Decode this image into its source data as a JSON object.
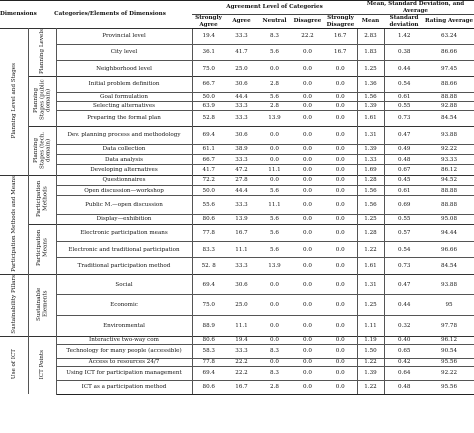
{
  "headers": {
    "dimensions": "Dimensions",
    "categories": "Categories/Elements of Dimensions",
    "agreement": "Agreement Level of Categories",
    "stats": "Mean, Standard Deviation, and Average",
    "strongly_agree": "Strongly Agree",
    "agree": "Agree",
    "neutral": "Neutral",
    "disagree": "Disagree",
    "strongly_disagree": "Strongly Disagree",
    "mean": "Mean",
    "std_dev": "Standard deviation",
    "rating_avg": "Rating Average"
  },
  "dimensions": [
    {
      "label": "Planning Level and Stages",
      "categories": [
        {
          "label": "Planning Levels",
          "rows": [
            {
              "element": "Provincial level",
              "sa": "19.4",
              "a": "33.3",
              "n": "8.3",
              "d": "22.2",
              "sd": "16.7",
              "mean": "2.83",
              "std": "1.42",
              "avg": "63.24"
            },
            {
              "element": "City level",
              "sa": "36.1",
              "a": "41.7",
              "n": "5.6",
              "d": "0.0",
              "sd": "16.7",
              "mean": "1.83",
              "std": "0.38",
              "avg": "86.66"
            },
            {
              "element": "Neighborhood level",
              "sa": "75.0",
              "a": "25.0",
              "n": "0.0",
              "d": "0.0",
              "sd": "0.0",
              "mean": "1.25",
              "std": "0.44",
              "avg": "97.45"
            }
          ]
        },
        {
          "label": "Planning Stages (public domain)",
          "rows": [
            {
              "element": "Initial problem definition",
              "sa": "66.7",
              "a": "30.6",
              "n": "2.8",
              "d": "0.0",
              "sd": "0.0",
              "mean": "1.36",
              "std": "0.54",
              "avg": "88.66"
            },
            {
              "element": "Goal formulation",
              "sa": "50.0",
              "a": "44.4",
              "n": "5.6",
              "d": "0.0",
              "sd": "0.0",
              "mean": "1.56",
              "std": "0.61",
              "avg": "88.88"
            },
            {
              "element": "Selecting alternatives",
              "sa": "63.9",
              "a": "33.3",
              "n": "2.8",
              "d": "0.0",
              "sd": "0.0",
              "mean": "1.39",
              "std": "0.55",
              "avg": "92.88"
            },
            {
              "element": "Preparing the formal plan",
              "sa": "52.8",
              "a": "33.3",
              "n": "13.9",
              "d": "0.0",
              "sd": "0.0",
              "mean": "1.61",
              "std": "0.73",
              "avg": "84.54"
            }
          ]
        },
        {
          "label": "Planning Stages (tech. domain)",
          "rows": [
            {
              "element": "Dev. planning process and methodology",
              "sa": "69.4",
              "a": "30.6",
              "n": "0.0",
              "d": "0.0",
              "sd": "0.0",
              "mean": "1.31",
              "std": "0.47",
              "avg": "93.88"
            },
            {
              "element": "Data collection",
              "sa": "61.1",
              "a": "38.9",
              "n": "0.0",
              "d": "0.0",
              "sd": "0.0",
              "mean": "1.39",
              "std": "0.49",
              "avg": "92.22"
            },
            {
              "element": "Data analysis",
              "sa": "66.7",
              "a": "33.3",
              "n": "0.0",
              "d": "0.0",
              "sd": "0.0",
              "mean": "1.33",
              "std": "0.48",
              "avg": "93.33"
            },
            {
              "element": "Developing alternatives",
              "sa": "41.7",
              "a": "47.2",
              "n": "11.1",
              "d": "0.0",
              "sd": "0.0",
              "mean": "1.69",
              "std": "0.67",
              "avg": "86.12"
            }
          ]
        }
      ]
    },
    {
      "label": "Participation Methods and Means",
      "categories": [
        {
          "label": "Participation Methods",
          "rows": [
            {
              "element": "Questionnaires",
              "sa": "72.2",
              "a": "27.8",
              "n": "0.0",
              "d": "0.0",
              "sd": "0.0",
              "mean": "1.28",
              "std": "0.45",
              "avg": "94.52"
            },
            {
              "element": "Open discussion—workshop",
              "sa": "50.0",
              "a": "44.4",
              "n": "5.6",
              "d": "0.0",
              "sd": "0.0",
              "mean": "1.56",
              "std": "0.61",
              "avg": "88.88"
            },
            {
              "element": "Public M.—open discussion",
              "sa": "55.6",
              "a": "33.3",
              "n": "11.1",
              "d": "0.0",
              "sd": "0.0",
              "mean": "1.56",
              "std": "0.69",
              "avg": "88.88"
            },
            {
              "element": "Display—exhibition",
              "sa": "80.6",
              "a": "13.9",
              "n": "5.6",
              "d": "0.0",
              "sd": "0.0",
              "mean": "1.25",
              "std": "0.55",
              "avg": "95.08"
            }
          ]
        },
        {
          "label": "Participation Means",
          "rows": [
            {
              "element": "Electronic participation means",
              "sa": "77.8",
              "a": "16.7",
              "n": "5.6",
              "d": "0.0",
              "sd": "0.0",
              "mean": "1.28",
              "std": "0.57",
              "avg": "94.44"
            },
            {
              "element": "Electronic and traditional participation",
              "sa": "83.3",
              "a": "11.1",
              "n": "5.6",
              "d": "0.0",
              "sd": "0.0",
              "mean": "1.22",
              "std": "0.54",
              "avg": "96.66"
            },
            {
              "element": "Traditional participation method",
              "sa": "52. 8",
              "a": "33.3",
              "n": "13.9",
              "d": "0.0",
              "sd": "0.0",
              "mean": "1.61",
              "std": "0.73",
              "avg": "84.54"
            }
          ]
        }
      ]
    },
    {
      "label": "Sustainability Pillars",
      "categories": [
        {
          "label": "Sustainable Elements",
          "rows": [
            {
              "element": "Social",
              "sa": "69.4",
              "a": "30.6",
              "n": "0.0",
              "d": "0.0",
              "sd": "0.0",
              "mean": "1.31",
              "std": "0.47",
              "avg": "93.88"
            },
            {
              "element": "Economic",
              "sa": "75.0",
              "a": "25.0",
              "n": "0.0",
              "d": "0.0",
              "sd": "0.0",
              "mean": "1.25",
              "std": "0.44",
              "avg": "95"
            },
            {
              "element": "Environmental",
              "sa": "88.9",
              "a": "11.1",
              "n": "0.0",
              "d": "0.0",
              "sd": "0.0",
              "mean": "1.11",
              "std": "0.32",
              "avg": "97.78"
            }
          ]
        }
      ]
    },
    {
      "label": "Use of ICT",
      "categories": [
        {
          "label": "ICT Points",
          "rows": [
            {
              "element": "Interactive two-way com",
              "sa": "80.6",
              "a": "19.4",
              "n": "0.0",
              "d": "0.0",
              "sd": "0.0",
              "mean": "1.19",
              "std": "0.40",
              "avg": "96.12"
            },
            {
              "element": "Technology for many people (accessible)",
              "sa": "58.3",
              "a": "33.3",
              "n": "8.3",
              "d": "0.0",
              "sd": "0.0",
              "mean": "1.50",
              "std": "0.65",
              "avg": "90.54"
            },
            {
              "element": "Access to resources 24/7",
              "sa": "77.8",
              "a": "22.2",
              "n": "0.0",
              "d": "0.0",
              "sd": "0.0",
              "mean": "1.22",
              "std": "0.42",
              "avg": "95.56"
            },
            {
              "element": "Using ICT for participation management",
              "sa": "69.4",
              "a": "22.2",
              "n": "8.3",
              "d": "0.0",
              "sd": "0.0",
              "mean": "1.39",
              "std": "0.64",
              "avg": "92.22"
            },
            {
              "element": "ICT as a participation method",
              "sa": "80.6",
              "a": "16.7",
              "n": "2.8",
              "d": "0.0",
              "sd": "0.0",
              "mean": "1.22",
              "std": "0.48",
              "avg": "95.56"
            }
          ]
        }
      ]
    }
  ]
}
